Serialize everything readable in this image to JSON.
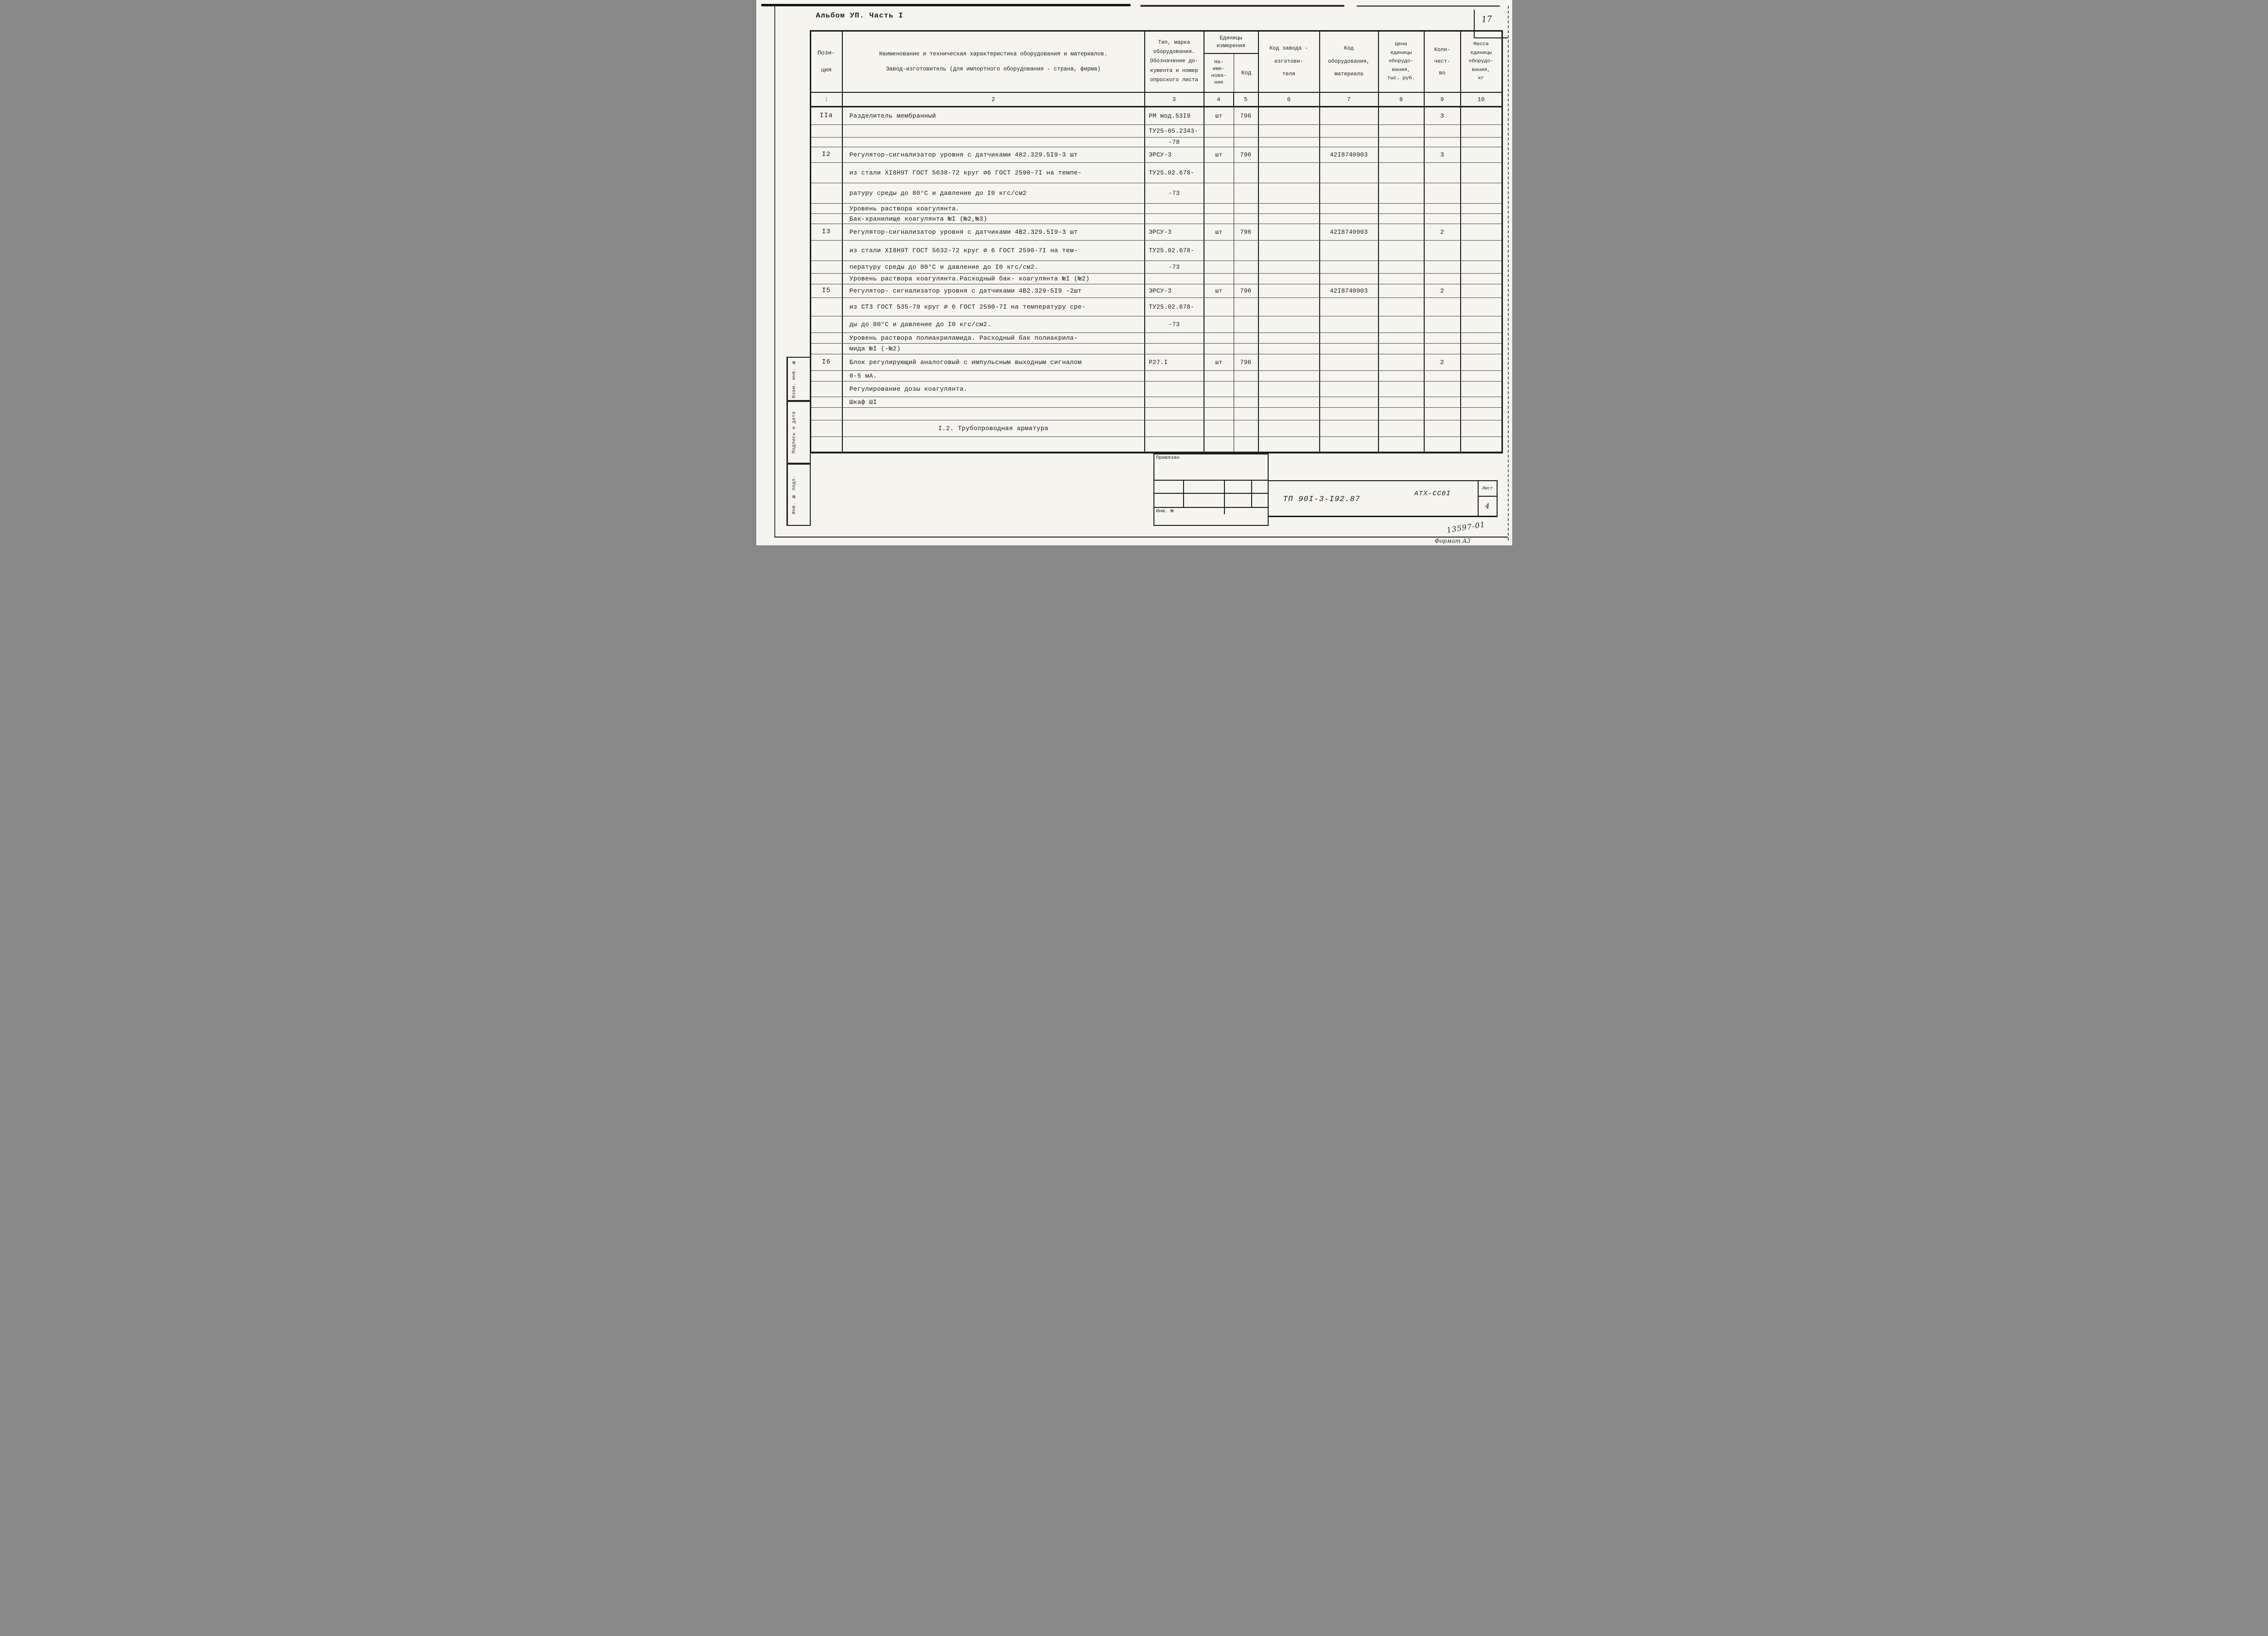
{
  "header": {
    "album": "Альбом УП. Часть I",
    "page_number": "17"
  },
  "table": {
    "head": {
      "pos": "Пози-\nция",
      "name_line1": "Наименование и техническая характеристика  оборудования и материалов.",
      "name_line2": "Завод-изготовитель  (для импортного оборудования -  страна, фирма)",
      "type": "Тип,    марка\nоборудования.\nОбозначение до-\nкумента и номер\nопроского листа",
      "unit_group": "Единицы\nизмерения",
      "unit_name": "На-\nиме-\nнова-\nние",
      "unit_code": "Код",
      "plant": "Код завода -\nизготови-\nтеля",
      "equip": "Код\nоборудования,\nматериала",
      "price": "Цена\nединицы\nоборудо-\nвания,\nтыс. руб.",
      "qty": "Коли-\nчест-\nво",
      "mass": "Масса\nединицы\nоборудо-\nвания,\nкг"
    },
    "numbering": [
      ":",
      "2",
      "3",
      "4",
      "5",
      "6",
      "7",
      "8",
      "9",
      "10"
    ],
    "rows": [
      {
        "h": 36,
        "pos": "IIa",
        "name": "Разделитель мембранный",
        "type": "РМ мод.53I9",
        "unit": "шт",
        "code": "796",
        "qty": "3"
      },
      {
        "h": 26,
        "type": "ТУ25-05.2343-"
      },
      {
        "h": 20,
        "type": "-78",
        "ta": "c"
      },
      {
        "h": 32,
        "pos": "I2",
        "name": "Регулятор-сигнализатор уровня с датчиками 482.329.5I9-3 шт",
        "type": "ЭРСУ-3",
        "unit": "шт",
        "code": "796",
        "equip": "42I8740903",
        "qty": "3"
      },
      {
        "h": 42,
        "name": "из стали ХI8Н9Т ГОСТ 5638-72 круг ∅6 ГОСТ 2590-7I на темпе-",
        "type": "ТУ25.02.678-"
      },
      {
        "h": 42,
        "name": "ратуру среды  до 80°С и давление до I0 кгс/см2",
        "type": "-73",
        "ta": "c"
      },
      {
        "h": 21,
        "name": "Уровень раствора коагулянта."
      },
      {
        "h": 21,
        "name": "Бак-хранилище коагулянта №I  (№2,№3)"
      },
      {
        "h": 34,
        "pos": "I3",
        "name": "Регулятор-сигнализатор уровня с датчиками 4В2.329.5I9-3 шт",
        "type": "ЭРСУ-3",
        "unit": "шт",
        "code": "796",
        "equip": "42I8740903",
        "qty": "2"
      },
      {
        "h": 42,
        "name": "из стали ХI8Н9Т ГОСТ 5632-72 круг ∅ 6 ГОСТ 2590-7I на тем-",
        "type": "ТУ25.02.678-"
      },
      {
        "h": 26,
        "name": "пературу среды до 80°С и давление до I0 кгс/см2.",
        "type": "-73",
        "ta": "c"
      },
      {
        "h": 22,
        "name": "Уровень раствора коагулянта.Расходный бак- коагулянта №I (№2)"
      },
      {
        "h": 28,
        "pos": "I5",
        "name": "Регулятор- сигнализатор уровня с датчиками 4В2.329-5I9 -2шт",
        "type": "ЭРСУ-3",
        "unit": "шт",
        "code": "796",
        "equip": "42I8740903",
        "qty": "2"
      },
      {
        "h": 38,
        "name": "из СТ3 ГОСТ 535-79 круг ∅ 6 ГОСТ 2590-7I на температуру сре-",
        "type": "ТУ25.02.678-"
      },
      {
        "h": 34,
        "name": "ды до 80°С и давление до I0 кгс/см2.",
        "type": "-73",
        "ta": "c"
      },
      {
        "h": 22,
        "name": "Уровень раствора полиакриламида. Расходный бак полиакрила-"
      },
      {
        "h": 22,
        "name": "мида №I (-№2)"
      },
      {
        "h": 34,
        "pos": "I6",
        "name": "Блок регулирующий аналоговый с импульсным выходным сигналом",
        "type": "Р27.I",
        "unit": "шт",
        "code": "796",
        "qty": "2"
      },
      {
        "h": 22,
        "name": "0-5 мА."
      },
      {
        "h": 32,
        "name": "Регулирование дозы коагулянта."
      },
      {
        "h": 22,
        "name": "Шкаф ШI"
      },
      {
        "h": 26
      },
      {
        "h": 34,
        "name": "I.2. Трубопроводная арматура",
        "na": "c"
      },
      {
        "h": 31
      }
    ]
  },
  "footer": {
    "stamp_top_label": "Привязан",
    "stamp_bottom_label": "Инв. №",
    "doc_code": "ТП 90I-3-I92.87",
    "project_code": "АТХ-СС0I",
    "sheet_label": "Лист",
    "sheet_number": "4",
    "handwritten": "13597-01",
    "format_note": "Формат А3",
    "side_labels": [
      "Взам. инв. №",
      "Подпись и дата",
      "Инв. № подл."
    ]
  }
}
